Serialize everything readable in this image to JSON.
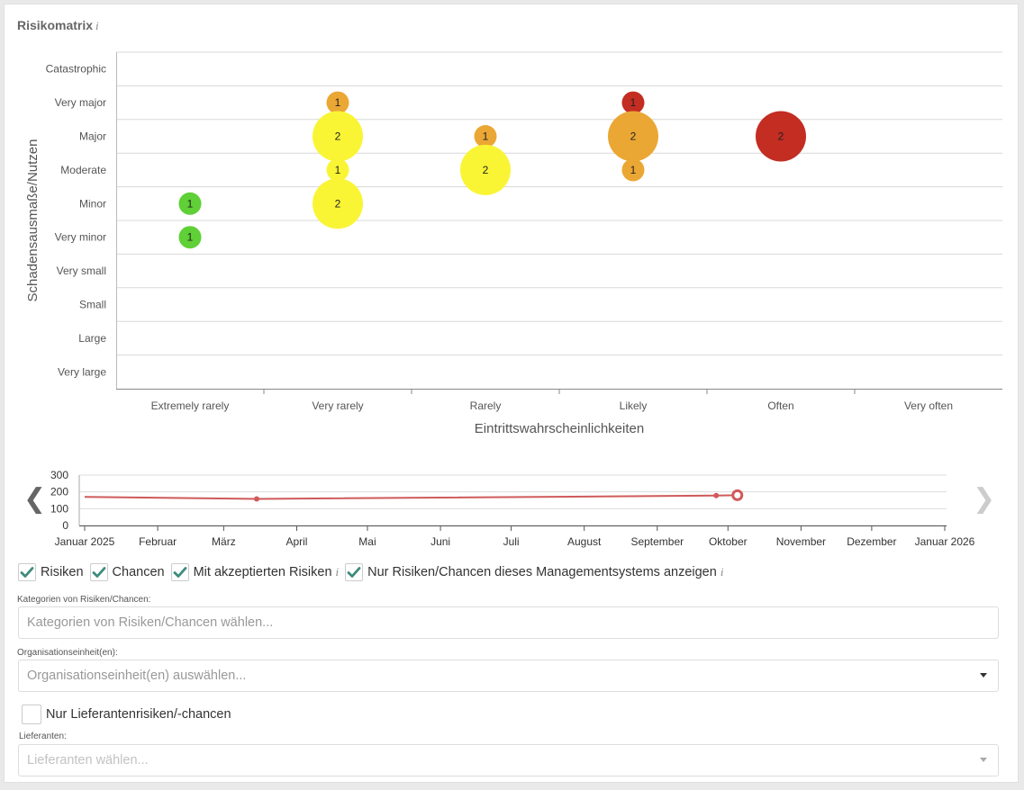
{
  "panel": {
    "title": "Risikomatrix",
    "title_info": "i"
  },
  "chart_data": [
    {
      "type": "scatter",
      "subtype": "bubble",
      "xlabel": "Eintrittswahrscheinlichkeiten",
      "ylabel": "Schadensausmaße/Nutzen",
      "x_categories": [
        "Extremely rarely",
        "Very rarely",
        "Rarely",
        "Likely",
        "Often",
        "Very often"
      ],
      "y_categories": [
        "Catastrophic",
        "Very major",
        "Major",
        "Moderate",
        "Minor",
        "Very minor",
        "Very small",
        "Small",
        "Large",
        "Very large"
      ],
      "grid": true,
      "points": [
        {
          "x": "Extremely rarely",
          "y": "Minor",
          "value": 1,
          "color": "#5fd035"
        },
        {
          "x": "Extremely rarely",
          "y": "Very minor",
          "value": 1,
          "color": "#5fd035"
        },
        {
          "x": "Very rarely",
          "y": "Very major",
          "value": 1,
          "color": "#eba734"
        },
        {
          "x": "Very rarely",
          "y": "Major",
          "value": 2,
          "color": "#f9f535"
        },
        {
          "x": "Very rarely",
          "y": "Moderate",
          "value": 1,
          "color": "#f9f535"
        },
        {
          "x": "Very rarely",
          "y": "Minor",
          "value": 2,
          "color": "#f9f535"
        },
        {
          "x": "Rarely",
          "y": "Major",
          "value": 1,
          "color": "#eba734"
        },
        {
          "x": "Rarely",
          "y": "Moderate",
          "value": 2,
          "color": "#f9f535"
        },
        {
          "x": "Likely",
          "y": "Very major",
          "value": 1,
          "color": "#c32d22"
        },
        {
          "x": "Likely",
          "y": "Major",
          "value": 2,
          "color": "#eba734"
        },
        {
          "x": "Likely",
          "y": "Moderate",
          "value": 1,
          "color": "#eba734"
        },
        {
          "x": "Often",
          "y": "Major",
          "value": 2,
          "color": "#c32d22"
        }
      ]
    },
    {
      "type": "line",
      "x_ticks": [
        "Januar 2025",
        "Februar",
        "März",
        "April",
        "Mai",
        "Juni",
        "Juli",
        "August",
        "September",
        "Oktober",
        "November",
        "Dezember",
        "Januar 2026"
      ],
      "y_ticks": [
        300,
        200,
        100,
        0
      ],
      "ylim": [
        0,
        300
      ],
      "grid": true,
      "color": "#d05a5a",
      "series": [
        {
          "points": [
            {
              "x": "2025-01-01",
              "y": 170
            },
            {
              "x": "2025-03-15",
              "y": 158
            },
            {
              "x": "2025-09-26",
              "y": 178
            },
            {
              "x": "2025-10-05",
              "y": 180,
              "selected": true
            }
          ]
        }
      ]
    }
  ],
  "navigation": {
    "prev": "❮",
    "next": "❯"
  },
  "filters": {
    "checkboxes": [
      {
        "label": "Risiken",
        "checked": true,
        "info": ""
      },
      {
        "label": "Chancen",
        "checked": true,
        "info": ""
      },
      {
        "label": "Mit akzeptierten Risiken",
        "checked": true,
        "info": "i"
      },
      {
        "label": "Nur Risiken/Chancen dieses Managementsystems anzeigen",
        "checked": true,
        "info": "i"
      }
    ],
    "categories_label": "Kategorien von Risiken/Chancen:",
    "categories_placeholder": "Kategorien von Risiken/Chancen wählen...",
    "org_label": "Organisationseinheit(en):",
    "org_placeholder": "Organisationseinheit(en) auswählen...",
    "supplier_only_label": "Nur Lieferantenrisiken/-chancen",
    "supplier_only_checked": false,
    "suppliers_label": "Lieferanten:",
    "suppliers_placeholder": "Lieferanten wählen..."
  },
  "colors": {
    "check": "#3d8c7c",
    "green": "#5fd035",
    "yellow": "#f9f535",
    "orange": "#eba734",
    "red": "#c32d22"
  }
}
